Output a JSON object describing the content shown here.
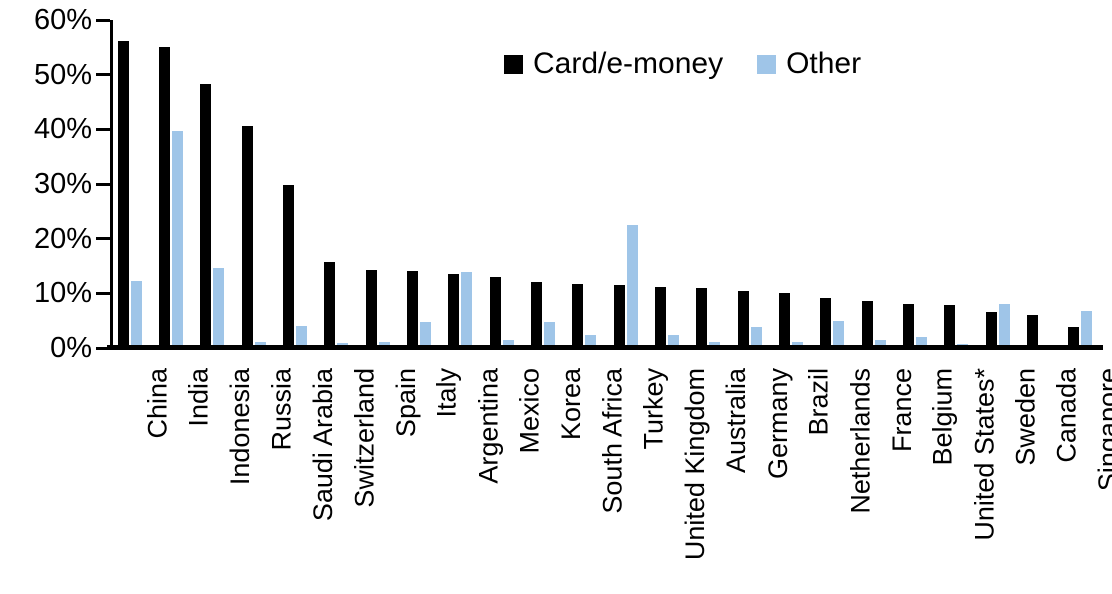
{
  "chart_data": {
    "type": "bar",
    "title": "",
    "xlabel": "",
    "ylabel": "",
    "ylim": [
      0,
      60
    ],
    "ytick_step": 10,
    "ytick_labels": [
      "0%",
      "10%",
      "20%",
      "30%",
      "40%",
      "50%",
      "60%"
    ],
    "grid": false,
    "legend_position": "top-center",
    "categories": [
      "China",
      "India",
      "Indonesia",
      "Russia",
      "Saudi Arabia",
      "Switzerland",
      "Spain",
      "Italy",
      "Argentina",
      "Mexico",
      "Korea",
      "South Africa",
      "Turkey",
      "United Kingdom",
      "Australia",
      "Germany",
      "Brazil",
      "Netherlands",
      "France",
      "Belgium",
      "United States*",
      "Sweden",
      "Canada",
      "Singapore"
    ],
    "series": [
      {
        "name": "Card/e-money",
        "color": "#000000",
        "values": [
          56,
          55,
          48.2,
          40.5,
          29.8,
          15.6,
          14.1,
          14,
          13.4,
          12.9,
          12,
          11.7,
          11.5,
          11,
          10.8,
          10.4,
          9.9,
          9.1,
          8.6,
          8,
          7.8,
          6.5,
          6,
          3.8
        ]
      },
      {
        "name": "Other",
        "color": "#9FC5E8",
        "values": [
          12.2,
          39.6,
          14.5,
          1,
          3.9,
          0.8,
          1,
          4.6,
          13.8,
          1.3,
          4.7,
          2.3,
          22.5,
          2.2,
          1,
          3.8,
          1,
          4.8,
          1.4,
          1.9,
          0.3,
          8,
          0,
          6.6
        ]
      }
    ]
  }
}
